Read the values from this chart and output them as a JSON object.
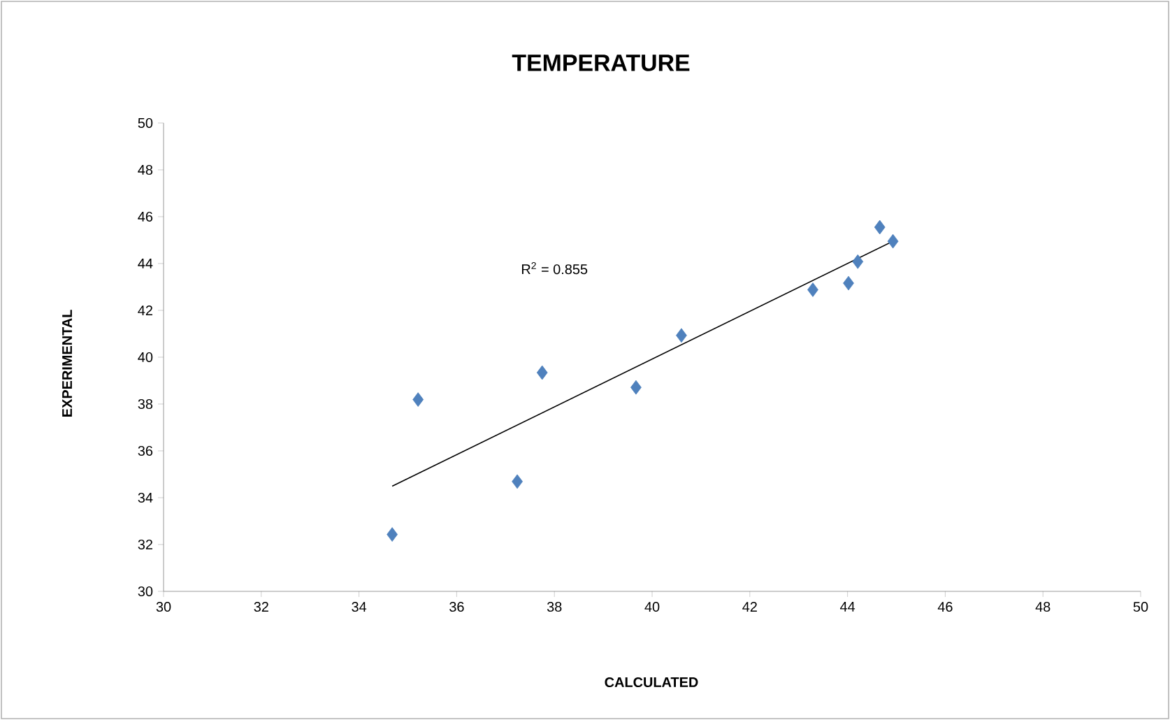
{
  "chart_data": {
    "type": "scatter",
    "title": "TEMPERATURE",
    "xlabel": "CALCULATED",
    "ylabel": "EXPERIMENTAL",
    "annotations": [
      "R$^{2}$ = 0.855"
    ],
    "xlim": [
      30,
      50
    ],
    "ylim": [
      30,
      50
    ],
    "xticks": [
      30,
      32,
      34,
      36,
      38,
      40,
      42,
      44,
      46,
      48,
      50
    ],
    "yticks": [
      30,
      32,
      34,
      36,
      38,
      40,
      42,
      44,
      46,
      48,
      50
    ],
    "series": [
      {
        "color": "#4f81bd",
        "marker": "diamond",
        "x": [
          34.68,
          35.21,
          37.24,
          37.75,
          39.67,
          40.6,
          43.29,
          44.02,
          44.21,
          44.66,
          44.93
        ],
        "values": [
          32.43,
          38.19,
          34.69,
          39.34,
          38.71,
          40.93,
          42.88,
          43.16,
          44.08,
          45.55,
          44.95
        ]
      },
      {
        "type": "line",
        "marker": "none",
        "color": "#000000",
        "x": [
          34.68,
          44.93
        ],
        "values": [
          34.49,
          44.95
        ]
      }
    ]
  }
}
